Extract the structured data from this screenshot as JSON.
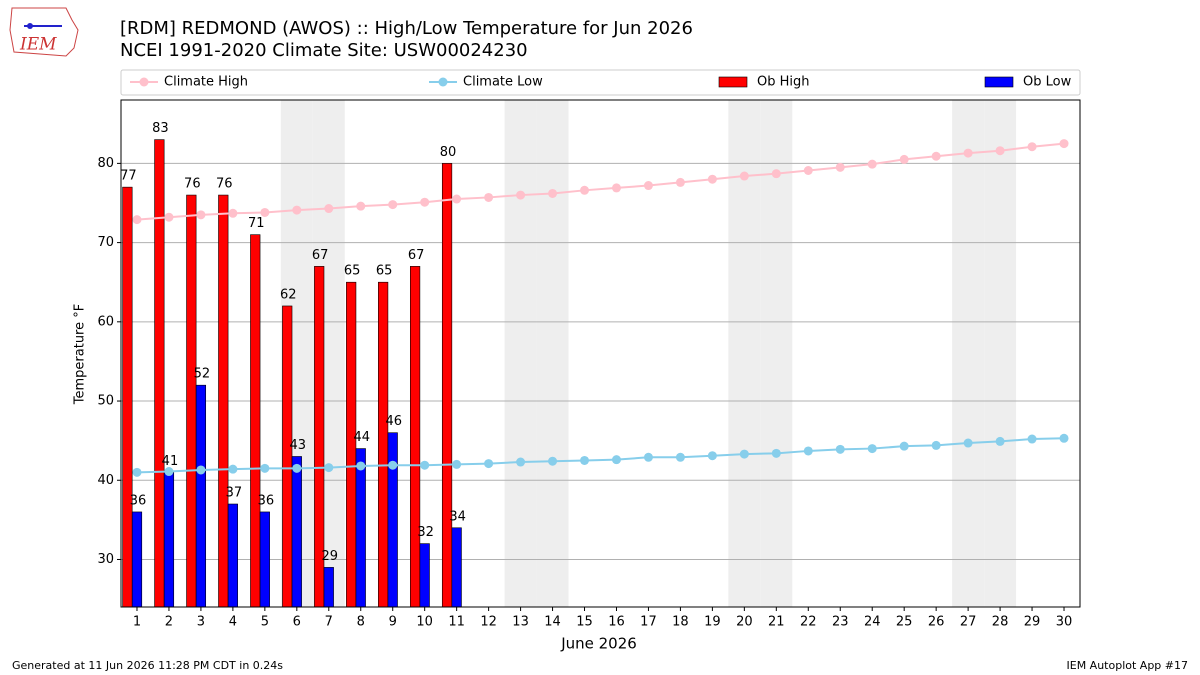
{
  "chart_data": {
    "type": "bar_line",
    "title": "[RDM] REDMOND (AWOS) :: High/Low Temperature for Jun 2026",
    "subtitle": "NCEI 1991-2020 Climate Site: USW00024230",
    "x_label": "June 2026",
    "y_label": "Temperature °F",
    "logo": "IEM",
    "footer_left": "Generated at 11 Jun 2026 11:28 PM CDT in 0.24s",
    "footer_right": "IEM Autoplot App #17",
    "x": [
      1,
      2,
      3,
      4,
      5,
      6,
      7,
      8,
      9,
      10,
      11,
      12,
      13,
      14,
      15,
      16,
      17,
      18,
      19,
      20,
      21,
      22,
      23,
      24,
      25,
      26,
      27,
      28,
      29,
      30
    ],
    "xlim": [
      0.5,
      30.5
    ],
    "xticks": [
      1,
      2,
      3,
      4,
      5,
      6,
      7,
      8,
      9,
      10,
      11,
      12,
      13,
      14,
      15,
      16,
      17,
      18,
      19,
      20,
      21,
      22,
      23,
      24,
      25,
      26,
      27,
      28,
      29,
      30
    ],
    "ylim": [
      24,
      88
    ],
    "yticks": [
      30,
      40,
      50,
      60,
      70,
      80
    ],
    "grid": true,
    "shaded_days": [
      6,
      7,
      13,
      14,
      20,
      21,
      27,
      28
    ],
    "series": [
      {
        "name": "Climate High",
        "kind": "line",
        "color": "#ffc0cb",
        "values": [
          72.9,
          73.2,
          73.5,
          73.7,
          73.8,
          74.1,
          74.3,
          74.6,
          74.8,
          75.1,
          75.5,
          75.7,
          76.0,
          76.2,
          76.6,
          76.9,
          77.2,
          77.6,
          78.0,
          78.4,
          78.7,
          79.1,
          79.5,
          79.9,
          80.5,
          80.9,
          81.3,
          81.6,
          82.1,
          82.5
        ]
      },
      {
        "name": "Climate Low",
        "kind": "line",
        "color": "#87ceeb",
        "values": [
          41.0,
          41.1,
          41.3,
          41.4,
          41.5,
          41.5,
          41.6,
          41.8,
          41.9,
          41.9,
          42.0,
          42.1,
          42.3,
          42.4,
          42.5,
          42.6,
          42.9,
          42.9,
          43.1,
          43.3,
          43.4,
          43.7,
          43.9,
          44.0,
          44.3,
          44.4,
          44.7,
          44.9,
          45.2,
          45.3
        ]
      },
      {
        "name": "Ob High",
        "kind": "bar",
        "color": "#ff0000",
        "values": [
          77,
          83,
          76,
          76,
          71,
          62,
          67,
          65,
          65,
          67,
          80,
          null,
          null,
          null,
          null,
          null,
          null,
          null,
          null,
          null,
          null,
          null,
          null,
          null,
          null,
          null,
          null,
          null,
          null,
          null
        ]
      },
      {
        "name": "Ob Low",
        "kind": "bar",
        "color": "#0000ff",
        "values": [
          36,
          41,
          52,
          37,
          36,
          43,
          29,
          44,
          46,
          32,
          34,
          null,
          null,
          null,
          null,
          null,
          null,
          null,
          null,
          null,
          null,
          null,
          null,
          null,
          null,
          null,
          null,
          null,
          null,
          null
        ]
      }
    ]
  }
}
